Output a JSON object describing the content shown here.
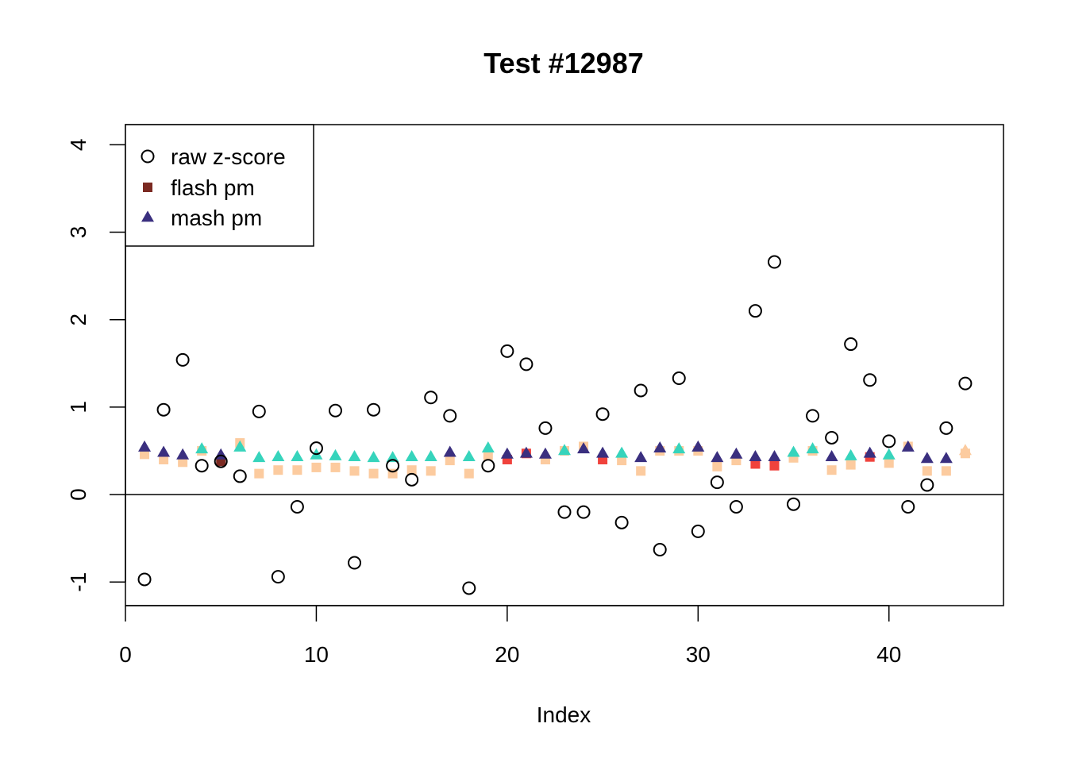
{
  "chart_data": {
    "type": "scatter",
    "title": "Test #12987",
    "xlabel": "Index",
    "ylabel": "",
    "xlim": [
      0,
      46
    ],
    "ylim": [
      -1.27,
      4.23
    ],
    "x_ticks": [
      0,
      10,
      20,
      30,
      40
    ],
    "y_ticks": [
      -1,
      0,
      1,
      2,
      3,
      4
    ],
    "reference_line_y": 0,
    "legend": {
      "position": "top-left",
      "entries": [
        {
          "label": "raw z-score",
          "shape": "circle-open",
          "color": "#000000"
        },
        {
          "label": "flash pm",
          "shape": "square",
          "color": "#7B2A22"
        },
        {
          "label": "mash pm",
          "shape": "triangle",
          "color": "#3A2F7F"
        }
      ]
    },
    "series": [
      {
        "name": "raw z-score",
        "shape": "circle-open",
        "color": "#000000",
        "x": [
          1,
          2,
          3,
          4,
          5,
          6,
          7,
          8,
          9,
          10,
          11,
          12,
          13,
          14,
          15,
          16,
          17,
          18,
          19,
          20,
          21,
          22,
          23,
          24,
          25,
          26,
          27,
          28,
          29,
          30,
          31,
          32,
          33,
          34,
          35,
          36,
          37,
          38,
          39,
          40,
          41,
          42,
          43,
          44
        ],
        "y": [
          -0.97,
          0.97,
          1.54,
          0.33,
          0.38,
          0.21,
          0.95,
          -0.94,
          -0.14,
          0.53,
          0.96,
          -0.78,
          0.97,
          0.33,
          0.17,
          1.11,
          0.9,
          -1.07,
          0.33,
          1.64,
          1.49,
          0.76,
          -0.2,
          -0.2,
          0.92,
          -0.32,
          1.19,
          -0.63,
          1.33,
          -0.42,
          0.14,
          -0.14,
          2.1,
          2.66,
          -0.11,
          0.9,
          0.65,
          1.72,
          1.31,
          0.61,
          -0.14,
          0.11,
          0.76,
          1.27
        ]
      },
      {
        "name": "flash pm",
        "shape": "square",
        "x": [
          1,
          2,
          3,
          4,
          5,
          6,
          7,
          8,
          9,
          10,
          11,
          12,
          13,
          14,
          15,
          16,
          17,
          18,
          19,
          20,
          21,
          22,
          23,
          24,
          25,
          26,
          27,
          28,
          29,
          30,
          31,
          32,
          33,
          34,
          35,
          36,
          37,
          38,
          39,
          40,
          41,
          42,
          43,
          44
        ],
        "y": [
          0.46,
          0.4,
          0.37,
          0.5,
          0.38,
          0.59,
          0.24,
          0.28,
          0.28,
          0.31,
          0.31,
          0.27,
          0.24,
          0.24,
          0.28,
          0.27,
          0.39,
          0.24,
          0.45,
          0.4,
          0.47,
          0.4,
          0.5,
          0.55,
          0.4,
          0.39,
          0.27,
          0.5,
          0.5,
          0.5,
          0.32,
          0.39,
          0.35,
          0.33,
          0.42,
          0.5,
          0.28,
          0.34,
          0.43,
          0.36,
          0.55,
          0.27,
          0.27,
          0.47
        ],
        "colors": [
          "#FCCB9F",
          "#FCCB9F",
          "#FCCB9F",
          "#FCCB9F",
          "#7B2A22",
          "#FCCB9F",
          "#FCCB9F",
          "#FCCB9F",
          "#FCCB9F",
          "#FCCB9F",
          "#FCCB9F",
          "#FCCB9F",
          "#FCCB9F",
          "#FCCB9F",
          "#FCCB9F",
          "#FCCB9F",
          "#FCCB9F",
          "#FCCB9F",
          "#FCCB9F",
          "#F0423C",
          "#F0423C",
          "#FCCB9F",
          "#FCCB9F",
          "#FCCB9F",
          "#F0423C",
          "#FCCB9F",
          "#FCCB9F",
          "#FCCB9F",
          "#FCCB9F",
          "#FCCB9F",
          "#FCCB9F",
          "#FCCB9F",
          "#F0423C",
          "#F0423C",
          "#FCCB9F",
          "#FCCB9F",
          "#FCCB9F",
          "#FCCB9F",
          "#F0423C",
          "#FCCB9F",
          "#FCCB9F",
          "#FCCB9F",
          "#FCCB9F",
          "#FCCB9F"
        ]
      },
      {
        "name": "mash pm",
        "shape": "triangle",
        "x": [
          1,
          2,
          3,
          4,
          5,
          6,
          7,
          8,
          9,
          10,
          11,
          12,
          13,
          14,
          15,
          16,
          17,
          18,
          19,
          20,
          21,
          22,
          23,
          24,
          25,
          26,
          27,
          28,
          29,
          30,
          31,
          32,
          33,
          34,
          35,
          36,
          37,
          38,
          39,
          40,
          41,
          42,
          43,
          44
        ],
        "y": [
          0.54,
          0.48,
          0.45,
          0.52,
          0.45,
          0.54,
          0.42,
          0.43,
          0.43,
          0.45,
          0.44,
          0.43,
          0.42,
          0.42,
          0.43,
          0.43,
          0.48,
          0.43,
          0.53,
          0.46,
          0.47,
          0.46,
          0.5,
          0.52,
          0.47,
          0.47,
          0.42,
          0.53,
          0.52,
          0.54,
          0.42,
          0.46,
          0.43,
          0.43,
          0.48,
          0.52,
          0.43,
          0.44,
          0.47,
          0.45,
          0.54,
          0.41,
          0.41,
          0.5
        ],
        "colors": [
          "#3A2F7F",
          "#3A2F7F",
          "#3A2F7F",
          "#36D4BC",
          "#3A2F7F",
          "#36D4BC",
          "#36D4BC",
          "#36D4BC",
          "#36D4BC",
          "#36D4BC",
          "#36D4BC",
          "#36D4BC",
          "#36D4BC",
          "#36D4BC",
          "#36D4BC",
          "#36D4BC",
          "#3A2F7F",
          "#36D4BC",
          "#36D4BC",
          "#3A2F7F",
          "#3A2F7F",
          "#3A2F7F",
          "#36D4BC",
          "#3A2F7F",
          "#3A2F7F",
          "#36D4BC",
          "#3A2F7F",
          "#3A2F7F",
          "#36D4BC",
          "#3A2F7F",
          "#3A2F7F",
          "#3A2F7F",
          "#3A2F7F",
          "#3A2F7F",
          "#36D4BC",
          "#36D4BC",
          "#3A2F7F",
          "#36D4BC",
          "#3A2F7F",
          "#36D4BC",
          "#3A2F7F",
          "#3A2F7F",
          "#3A2F7F",
          "#FCCB9F"
        ]
      }
    ]
  }
}
